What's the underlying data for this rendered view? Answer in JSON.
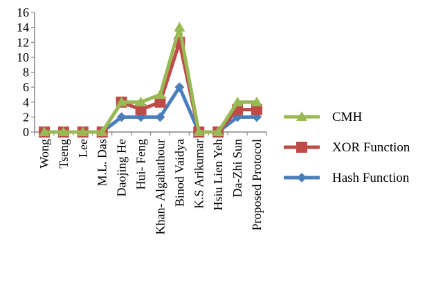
{
  "chart_data": {
    "type": "line",
    "title": "",
    "xlabel": "",
    "ylabel": "",
    "categories": [
      "Wong",
      "Tseng",
      "Lee",
      "M.L. Das",
      "Daojing He",
      "Hui- Feng",
      "Khan- Algahathour",
      "Binod Vaidya",
      "K.S Arikumar",
      "Hsiu Lien Yeh",
      "Da-Zhi Sun",
      "Proposed Protocol"
    ],
    "yticks": [
      0,
      2,
      4,
      6,
      8,
      10,
      12,
      14,
      16
    ],
    "ylim": [
      0,
      16
    ],
    "grid": false,
    "legend_position": "right",
    "series": [
      {
        "name": "Hash Function",
        "color": "#4a7ebb",
        "marker": "diamond",
        "values": [
          0,
          0,
          0,
          0,
          2,
          2,
          2,
          6,
          0,
          0,
          2,
          2
        ]
      },
      {
        "name": "XOR Function",
        "color": "#be4b48",
        "marker": "square",
        "values": [
          0,
          0,
          0,
          0,
          4,
          3,
          4,
          12,
          0,
          0,
          3,
          3
        ]
      },
      {
        "name": "CMH",
        "color": "#98b954",
        "marker": "triangle",
        "values": [
          0,
          0,
          0,
          0,
          4,
          4,
          5,
          14,
          0,
          0,
          4,
          4
        ]
      }
    ],
    "legend_order": [
      "CMH",
      "XOR Function",
      "Hash Function"
    ]
  }
}
